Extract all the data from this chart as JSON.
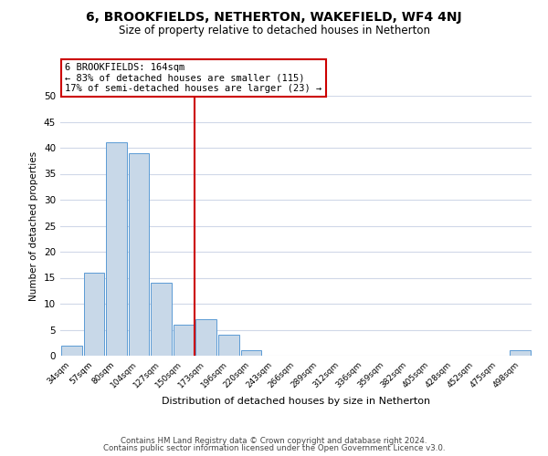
{
  "title": "6, BROOKFIELDS, NETHERTON, WAKEFIELD, WF4 4NJ",
  "subtitle": "Size of property relative to detached houses in Netherton",
  "xlabel": "Distribution of detached houses by size in Netherton",
  "ylabel": "Number of detached properties",
  "bar_color": "#c8d8e8",
  "bar_edge_color": "#5b9bd5",
  "bin_labels": [
    "34sqm",
    "57sqm",
    "80sqm",
    "104sqm",
    "127sqm",
    "150sqm",
    "173sqm",
    "196sqm",
    "220sqm",
    "243sqm",
    "266sqm",
    "289sqm",
    "312sqm",
    "336sqm",
    "359sqm",
    "382sqm",
    "405sqm",
    "428sqm",
    "452sqm",
    "475sqm",
    "498sqm"
  ],
  "bar_values": [
    2,
    16,
    41,
    39,
    14,
    6,
    7,
    4,
    1,
    0,
    0,
    0,
    0,
    0,
    0,
    0,
    0,
    0,
    0,
    0,
    1
  ],
  "ylim": [
    0,
    50
  ],
  "yticks": [
    0,
    5,
    10,
    15,
    20,
    25,
    30,
    35,
    40,
    45,
    50
  ],
  "vline_x": 5.5,
  "vline_color": "#cc0000",
  "annotation_text": "6 BROOKFIELDS: 164sqm\n← 83% of detached houses are smaller (115)\n17% of semi-detached houses are larger (23) →",
  "annotation_box_color": "#ffffff",
  "annotation_box_edge": "#cc0000",
  "footer_line1": "Contains HM Land Registry data © Crown copyright and database right 2024.",
  "footer_line2": "Contains public sector information licensed under the Open Government Licence v3.0.",
  "background_color": "#ffffff",
  "grid_color": "#d0d8e8"
}
